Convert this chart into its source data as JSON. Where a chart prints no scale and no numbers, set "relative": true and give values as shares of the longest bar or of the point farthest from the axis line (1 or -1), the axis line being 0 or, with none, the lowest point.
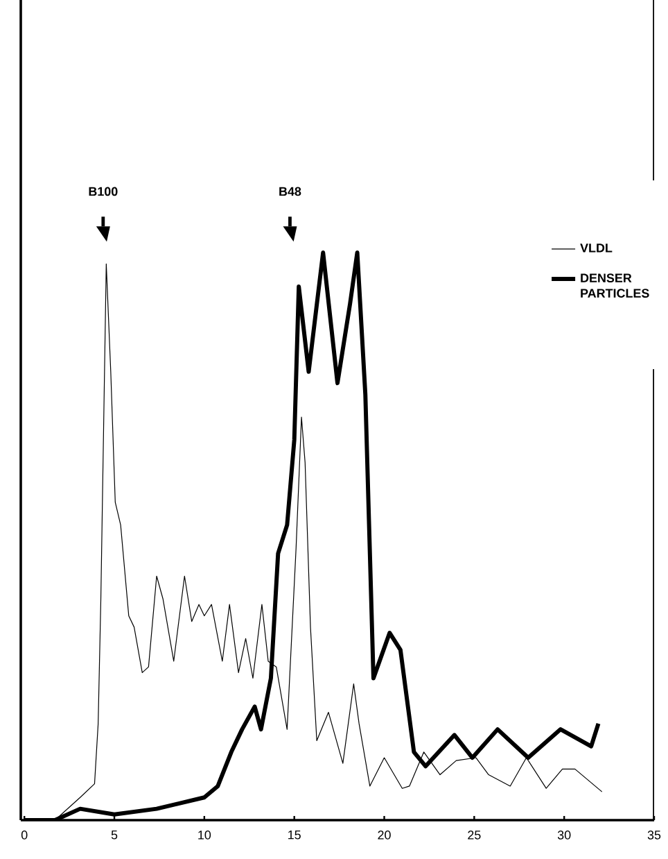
{
  "chart_data": {
    "type": "line",
    "relative": true,
    "legend": "top right",
    "marker": "none",
    "line_style": "solid",
    "xlim": [
      -0.2,
      35
    ],
    "xticks": [
      0,
      5,
      10,
      15,
      20,
      25,
      30,
      35
    ],
    "annotations": [
      "B100",
      "B48"
    ],
    "series": [
      {
        "name": "VLDL",
        "color": "#000000",
        "x": [
          0,
          1.7,
          3.1,
          3.9,
          4.1,
          4.25,
          4.55,
          4.8,
          5.05,
          5.35,
          5.8,
          6.1,
          6.55,
          6.9,
          7.35,
          7.7,
          8.3,
          8.9,
          9.3,
          9.7,
          10.0,
          10.4,
          11.0,
          11.4,
          11.9,
          12.3,
          12.7,
          13.2,
          13.55,
          14.0,
          14.6,
          15.1,
          15.4,
          15.6,
          15.9,
          16.25,
          16.9,
          17.7,
          18.3,
          18.6,
          19.2,
          20.0,
          21.0,
          21.4,
          22.2,
          23.1,
          24.0,
          25.1,
          25.8,
          27.0,
          27.9,
          29.0,
          29.9,
          30.6,
          32.1
        ],
        "values": [
          0,
          0,
          0.04,
          0.064,
          0.17,
          0.39,
          0.98,
          0.79,
          0.56,
          0.52,
          0.36,
          0.34,
          0.26,
          0.27,
          0.43,
          0.39,
          0.28,
          0.43,
          0.35,
          0.38,
          0.36,
          0.38,
          0.28,
          0.38,
          0.26,
          0.32,
          0.25,
          0.38,
          0.28,
          0.27,
          0.16,
          0.48,
          0.71,
          0.63,
          0.34,
          0.14,
          0.19,
          0.1,
          0.24,
          0.17,
          0.06,
          0.11,
          0.056,
          0.06,
          0.12,
          0.08,
          0.105,
          0.11,
          0.08,
          0.06,
          0.11,
          0.056,
          0.09,
          0.09,
          0.05
        ]
      },
      {
        "name": "DENSER PARTICLES",
        "color": "#000000",
        "x": [
          0,
          1.7,
          3.1,
          5.0,
          7.35,
          10.0,
          10.75,
          11.5,
          12.1,
          12.8,
          13.15,
          13.7,
          14.1,
          14.6,
          15.0,
          15.25,
          15.8,
          16.6,
          17.4,
          18.1,
          18.5,
          18.95,
          19.4,
          20.3,
          20.9,
          21.65,
          22.3,
          23.9,
          24.9,
          26.3,
          28.0,
          29.8,
          31.5,
          31.9
        ],
        "values": [
          0,
          0,
          0.02,
          0.01,
          0.02,
          0.04,
          0.06,
          0.12,
          0.16,
          0.2,
          0.16,
          0.25,
          0.47,
          0.52,
          0.67,
          0.94,
          0.79,
          1.0,
          0.77,
          0.91,
          1.0,
          0.75,
          0.25,
          0.33,
          0.3,
          0.12,
          0.095,
          0.15,
          0.11,
          0.16,
          0.11,
          0.16,
          0.13,
          0.17
        ]
      }
    ]
  }
}
